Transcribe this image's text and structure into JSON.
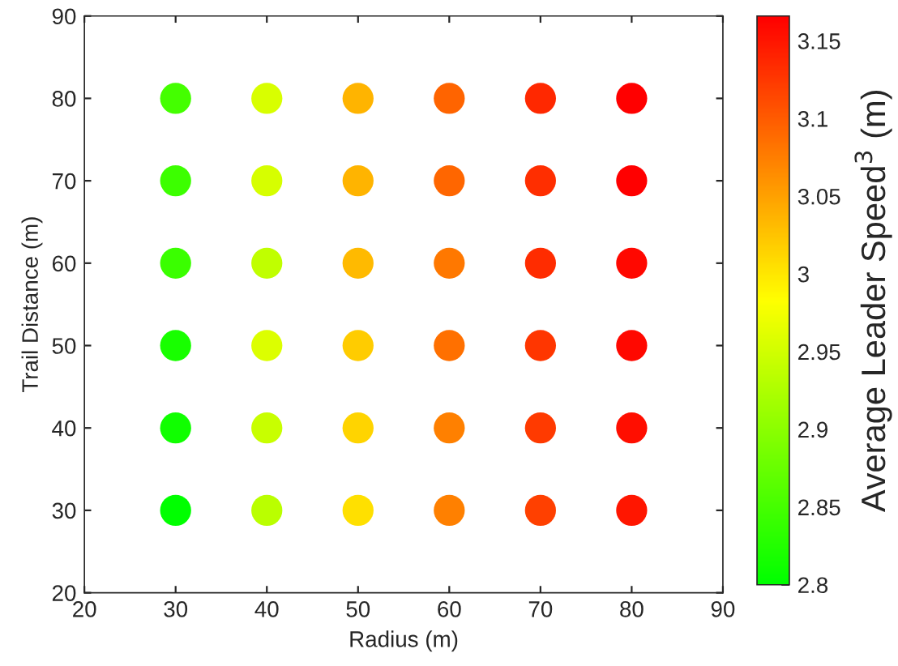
{
  "chart_data": {
    "type": "scatter",
    "xlabel": "Radius (m)",
    "ylabel": "Trail Distance (m)",
    "clabel": "Average Leader Speed$^{3}$ (m)",
    "x": [
      30,
      30,
      30,
      30,
      30,
      30,
      40,
      40,
      40,
      40,
      40,
      40,
      50,
      50,
      50,
      50,
      50,
      50,
      60,
      60,
      60,
      60,
      60,
      60,
      70,
      70,
      70,
      70,
      70,
      70,
      80,
      80,
      80,
      80,
      80,
      80
    ],
    "values": [
      80,
      70,
      60,
      50,
      40,
      30,
      80,
      70,
      60,
      50,
      40,
      30,
      80,
      70,
      60,
      50,
      40,
      30,
      80,
      70,
      60,
      50,
      40,
      30,
      80,
      70,
      60,
      50,
      40,
      30,
      80,
      70,
      60,
      50,
      40,
      30
    ],
    "cvalues": [
      2.849,
      2.843,
      2.842,
      2.818,
      2.812,
      2.8,
      2.955,
      2.954,
      2.938,
      2.958,
      2.943,
      2.934,
      3.037,
      3.037,
      3.032,
      3.02,
      3.014,
      3.005,
      3.094,
      3.092,
      3.08,
      3.085,
      3.074,
      3.074,
      3.137,
      3.132,
      3.134,
      3.126,
      3.124,
      3.12,
      3.166,
      3.166,
      3.16,
      3.16,
      3.155,
      3.15
    ],
    "xlim": [
      20,
      90
    ],
    "xticks": [
      20,
      30,
      40,
      50,
      60,
      70,
      80,
      90
    ],
    "ylim": [
      20,
      90
    ],
    "yticks": [
      20,
      30,
      40,
      50,
      60,
      70,
      80,
      90
    ],
    "clim": [
      2.8,
      3.166
    ],
    "cticks": [
      2.8,
      2.85,
      2.9,
      2.95,
      3,
      3.05,
      3.1,
      3.15
    ],
    "marker": "circle",
    "grid": false,
    "legend": false
  }
}
